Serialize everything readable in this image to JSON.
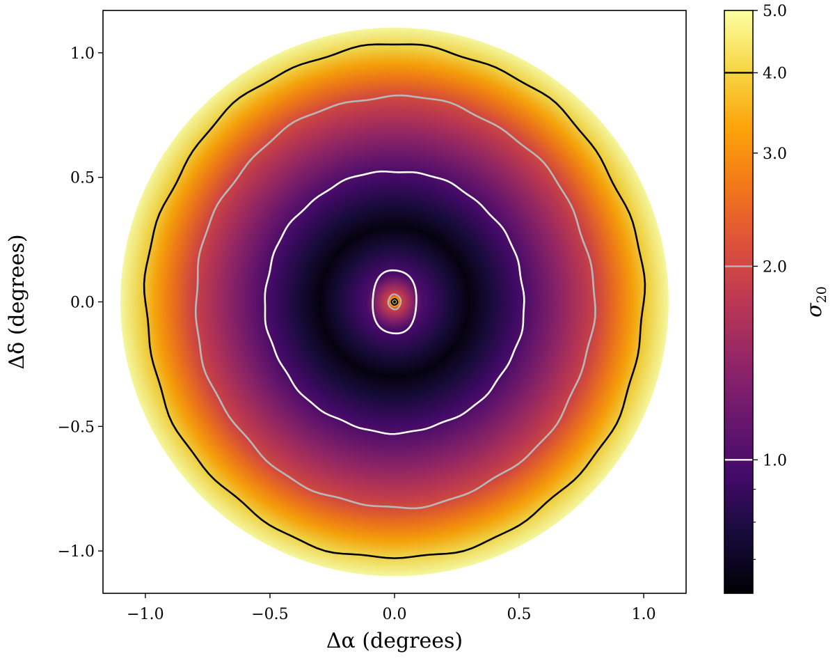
{
  "chart_data": {
    "type": "heatmap",
    "xlabel": "Δα (degrees)",
    "ylabel": "Δδ (degrees)",
    "xlim": [
      -1.17,
      1.17
    ],
    "ylim": [
      -1.17,
      1.17
    ],
    "x_ticks": [
      {
        "value": -1.0,
        "label": "−1.0"
      },
      {
        "value": -0.5,
        "label": "−0.5"
      },
      {
        "value": 0.0,
        "label": "0.0"
      },
      {
        "value": 0.5,
        "label": "0.5"
      },
      {
        "value": 1.0,
        "label": "1.0"
      }
    ],
    "y_ticks": [
      {
        "value": -1.0,
        "label": "−1.0"
      },
      {
        "value": -0.5,
        "label": "−0.5"
      },
      {
        "value": 0.0,
        "label": "0.0"
      },
      {
        "value": 0.5,
        "label": "0.5"
      },
      {
        "value": 1.0,
        "label": "1.0"
      }
    ],
    "field_radius_deg": 1.1,
    "colormap": "inferno",
    "colorbar": {
      "label": "σ20",
      "scale": "log",
      "range": [
        0.62,
        5.0
      ],
      "ticks": [
        {
          "value": 1.0,
          "label": "1.0"
        },
        {
          "value": 2.0,
          "label": "2.0"
        },
        {
          "value": 3.0,
          "label": "3.0"
        },
        {
          "value": 4.0,
          "label": "4.0"
        },
        {
          "value": 5.0,
          "label": "5.0"
        }
      ],
      "minor_ticks": [
        0.7,
        0.8,
        0.9
      ],
      "contour_marks": [
        {
          "value": 1.0,
          "color": "#ffffff"
        },
        {
          "value": 2.0,
          "color": "#b8b8b8"
        },
        {
          "value": 4.0,
          "color": "#000000"
        }
      ]
    },
    "contours": [
      {
        "level": 4.0,
        "color": "#000000",
        "rx": 1.0,
        "ry": 1.03
      },
      {
        "level": 2.0,
        "color": "#b8b8b8",
        "rx": 0.8,
        "ry": 0.825
      },
      {
        "level": 1.0,
        "color": "#ffffff",
        "rx": 0.52,
        "ry": 0.525
      },
      {
        "level": 1.0,
        "color": "#ffffff",
        "rx": 0.09,
        "ry": 0.13
      },
      {
        "level": 2.0,
        "color": "#b8b8b8",
        "rx": 0.025,
        "ry": 0.03
      },
      {
        "level": 4.0,
        "color": "#000000",
        "rx": 0.012,
        "ry": 0.012
      }
    ],
    "radial_profile": [
      {
        "r": 0.0,
        "value": 5.0
      },
      {
        "r": 0.012,
        "value": 4.0
      },
      {
        "r": 0.028,
        "value": 2.0
      },
      {
        "r": 0.11,
        "value": 1.0
      },
      {
        "r": 0.3,
        "value": 0.65
      },
      {
        "r": 0.52,
        "value": 1.0
      },
      {
        "r": 0.81,
        "value": 2.0
      },
      {
        "r": 1.015,
        "value": 4.0
      },
      {
        "r": 1.1,
        "value": 5.0
      }
    ]
  }
}
